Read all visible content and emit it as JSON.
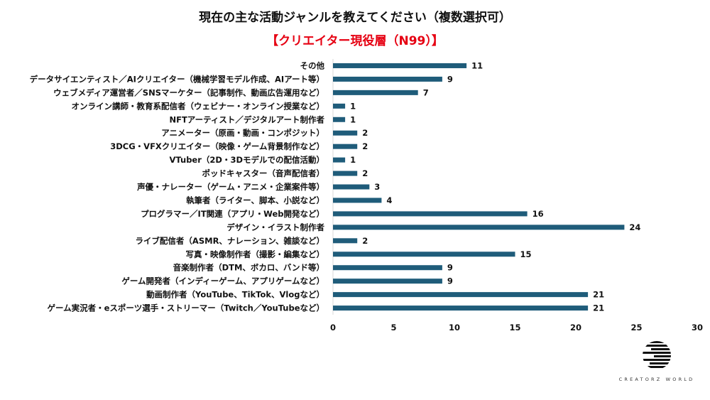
{
  "chart_data": {
    "type": "bar",
    "orientation": "horizontal",
    "title": "現在の主な活動ジャンルを教えてください（複数選択可）",
    "subtitle": "【クリエイター現役層（N99）】",
    "categories": [
      "その他",
      "データサイエンティスト／AIクリエイター（機械学習モデル作成、AIアート等）",
      "ウェブメディア運営者／SNSマーケター（記事制作、動画広告運用など）",
      "オンライン講師・教育系配信者（ウェビナー・オンライン授業など）",
      "NFTアーティスト／デジタルアート制作者",
      "アニメーター（原画・動画・コンポジット）",
      "3DCG・VFXクリエイター（映像・ゲーム背景制作など）",
      "VTuber（2D・3Dモデルでの配信活動）",
      "ポッドキャスター（音声配信者）",
      "声優・ナレーター（ゲーム・アニメ・企業案件等）",
      "執筆者（ライター、脚本、小説など）",
      "プログラマー／IT関連（アプリ・Web開発など）",
      "デザイン・イラスト制作者",
      "ライブ配信者（ASMR、ナレーション、雑談など）",
      "写真・映像制作者（撮影・編集など）",
      "音楽制作者（DTM、ボカロ、バンド等）",
      "ゲーム開発者（インディーゲーム、アプリゲームなど）",
      "動画制作者（YouTube、TikTok、Vlogなど）",
      "ゲーム実況者・eスポーツ選手・ストリーマー（Twitch／YouTubeなど）"
    ],
    "values": [
      11,
      9,
      7,
      1,
      1,
      2,
      2,
      1,
      2,
      3,
      4,
      16,
      24,
      2,
      15,
      9,
      9,
      21,
      21
    ],
    "xlim": [
      0,
      30
    ],
    "xticks": [
      0,
      5,
      10,
      15,
      20,
      25,
      30
    ],
    "grid": false,
    "legend": "none",
    "bar_color": "#1f5c7a"
  },
  "logo": {
    "text": "CREATORZ WORLD"
  }
}
